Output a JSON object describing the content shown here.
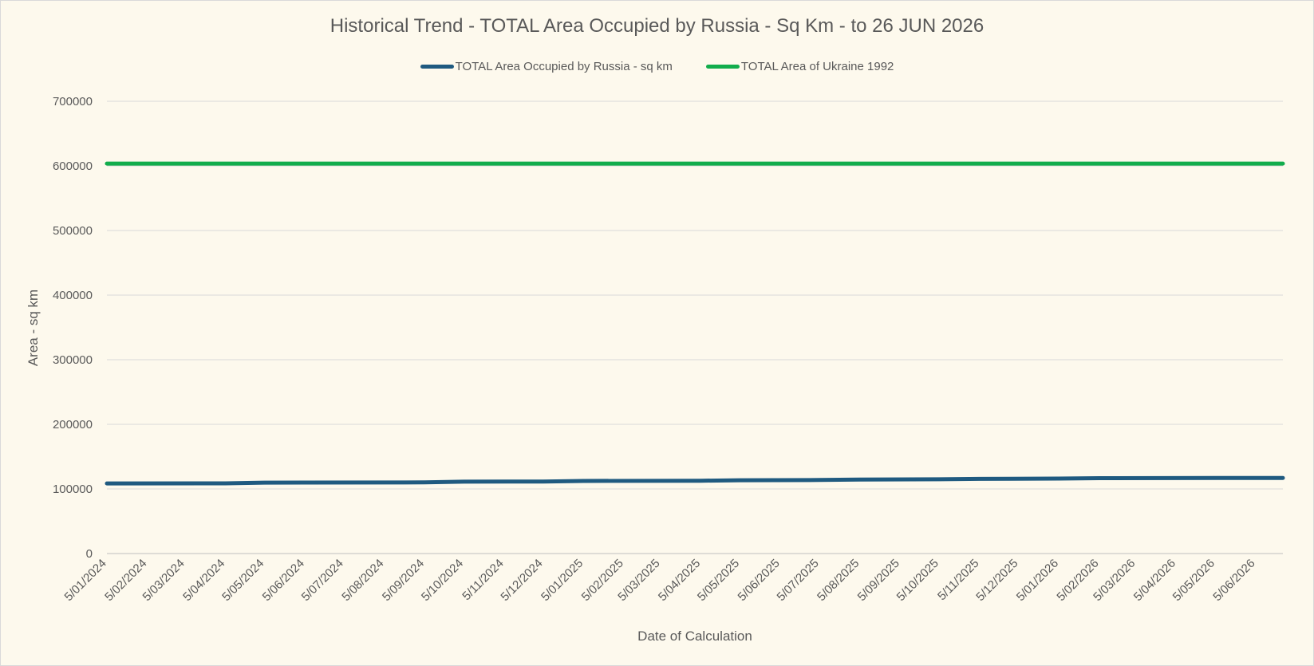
{
  "chart_data": {
    "type": "line",
    "title": "Historical Trend - TOTAL Area Occupied by Russia - Sq Km - to 26 JUN 2026",
    "xlabel": "Date of Calculation",
    "ylabel": "Area - sq km",
    "ylim": [
      0,
      700000
    ],
    "y_ticks": [
      "0",
      "100000",
      "200000",
      "300000",
      "400000",
      "500000",
      "600000",
      "700000"
    ],
    "grid": "horizontal",
    "legend_position": "top",
    "x_tick_labels": [
      "5/01/2024",
      "5/02/2024",
      "5/03/2024",
      "5/04/2024",
      "5/05/2024",
      "5/06/2024",
      "5/07/2024",
      "5/08/2024",
      "5/09/2024",
      "5/10/2024",
      "5/11/2024",
      "5/12/2024",
      "5/01/2025",
      "5/02/2025",
      "5/03/2025",
      "5/04/2025",
      "5/05/2025",
      "5/06/2025",
      "5/07/2025",
      "5/08/2025",
      "5/09/2025",
      "5/10/2025",
      "5/11/2025",
      "5/12/2025",
      "5/01/2026",
      "5/02/2026",
      "5/03/2026",
      "5/04/2026",
      "5/05/2026",
      "5/06/2026"
    ],
    "x_range": [
      "5/01/2024",
      "26/06/2026"
    ],
    "series": [
      {
        "name": "TOTAL Area Occupied by Russia - sq km",
        "color": "#1f5a80",
        "points": [
          {
            "x": "5/01/2024",
            "y": 108500
          },
          {
            "x": "5/04/2024",
            "y": 108700
          },
          {
            "x": "5/05/2024",
            "y": 109800
          },
          {
            "x": "5/09/2024",
            "y": 110100
          },
          {
            "x": "5/10/2024",
            "y": 111200
          },
          {
            "x": "5/12/2024",
            "y": 111500
          },
          {
            "x": "5/01/2025",
            "y": 112300
          },
          {
            "x": "5/04/2025",
            "y": 112700
          },
          {
            "x": "5/05/2025",
            "y": 113400
          },
          {
            "x": "5/07/2025",
            "y": 113800
          },
          {
            "x": "5/08/2025",
            "y": 114500
          },
          {
            "x": "5/10/2025",
            "y": 114900
          },
          {
            "x": "5/11/2025",
            "y": 115600
          },
          {
            "x": "5/01/2026",
            "y": 116000
          },
          {
            "x": "5/02/2026",
            "y": 116700
          },
          {
            "x": "26/06/2026",
            "y": 117000
          }
        ]
      },
      {
        "name": "TOTAL Area of Ukraine 1992",
        "color": "#12ad4c",
        "points": [
          {
            "x": "5/01/2024",
            "y": 603628
          },
          {
            "x": "26/06/2026",
            "y": 603628
          }
        ]
      }
    ]
  }
}
